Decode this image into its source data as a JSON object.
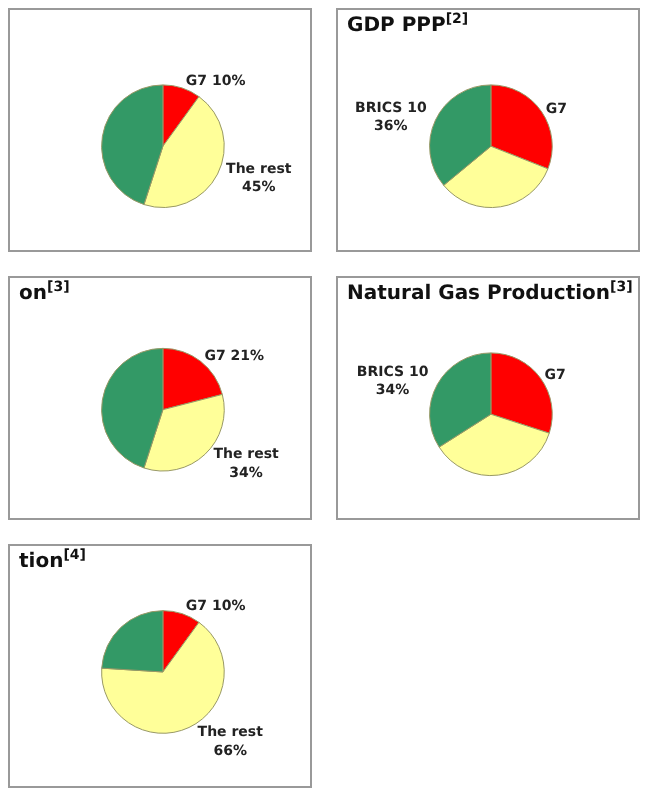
{
  "chart_data": [
    {
      "type": "pie",
      "categories": [
        "G7",
        "The rest",
        null
      ],
      "values": [
        10,
        45,
        45
      ],
      "value_labels": [
        "10%",
        "45%",
        null
      ],
      "colors": [
        "#ff0000",
        "#ffff99",
        "#339966"
      ]
    },
    {
      "type": "pie",
      "title": "GDP PPP$^{[2]}$",
      "categories": [
        "G7",
        null,
        "BRICS 10"
      ],
      "values": [
        31,
        33,
        36
      ],
      "value_labels": [
        null,
        null,
        "36%"
      ],
      "colors": [
        "#ff0000",
        "#ffff99",
        "#339966"
      ]
    },
    {
      "type": "pie",
      "title": "on$^{[3]}$",
      "categories": [
        "G7",
        "The rest",
        null
      ],
      "values": [
        21,
        34,
        45
      ],
      "value_labels": [
        "21%",
        "34%",
        null
      ],
      "colors": [
        "#ff0000",
        "#ffff99",
        "#339966"
      ]
    },
    {
      "type": "pie",
      "title": "Natural Gas Production$^{[3]}$",
      "categories": [
        "G7",
        null,
        "BRICS 10"
      ],
      "values": [
        30,
        36,
        34
      ],
      "value_labels": [
        null,
        null,
        "34%"
      ],
      "colors": [
        "#ff0000",
        "#ffff99",
        "#339966"
      ]
    },
    {
      "type": "pie",
      "title": "tion$^{[4]}$",
      "categories": [
        "G7",
        "The rest",
        null
      ],
      "values": [
        10,
        66,
        24
      ],
      "value_labels": [
        "10%",
        "66%",
        null
      ],
      "colors": [
        "#ff0000",
        "#ffff99",
        "#339966"
      ]
    }
  ]
}
